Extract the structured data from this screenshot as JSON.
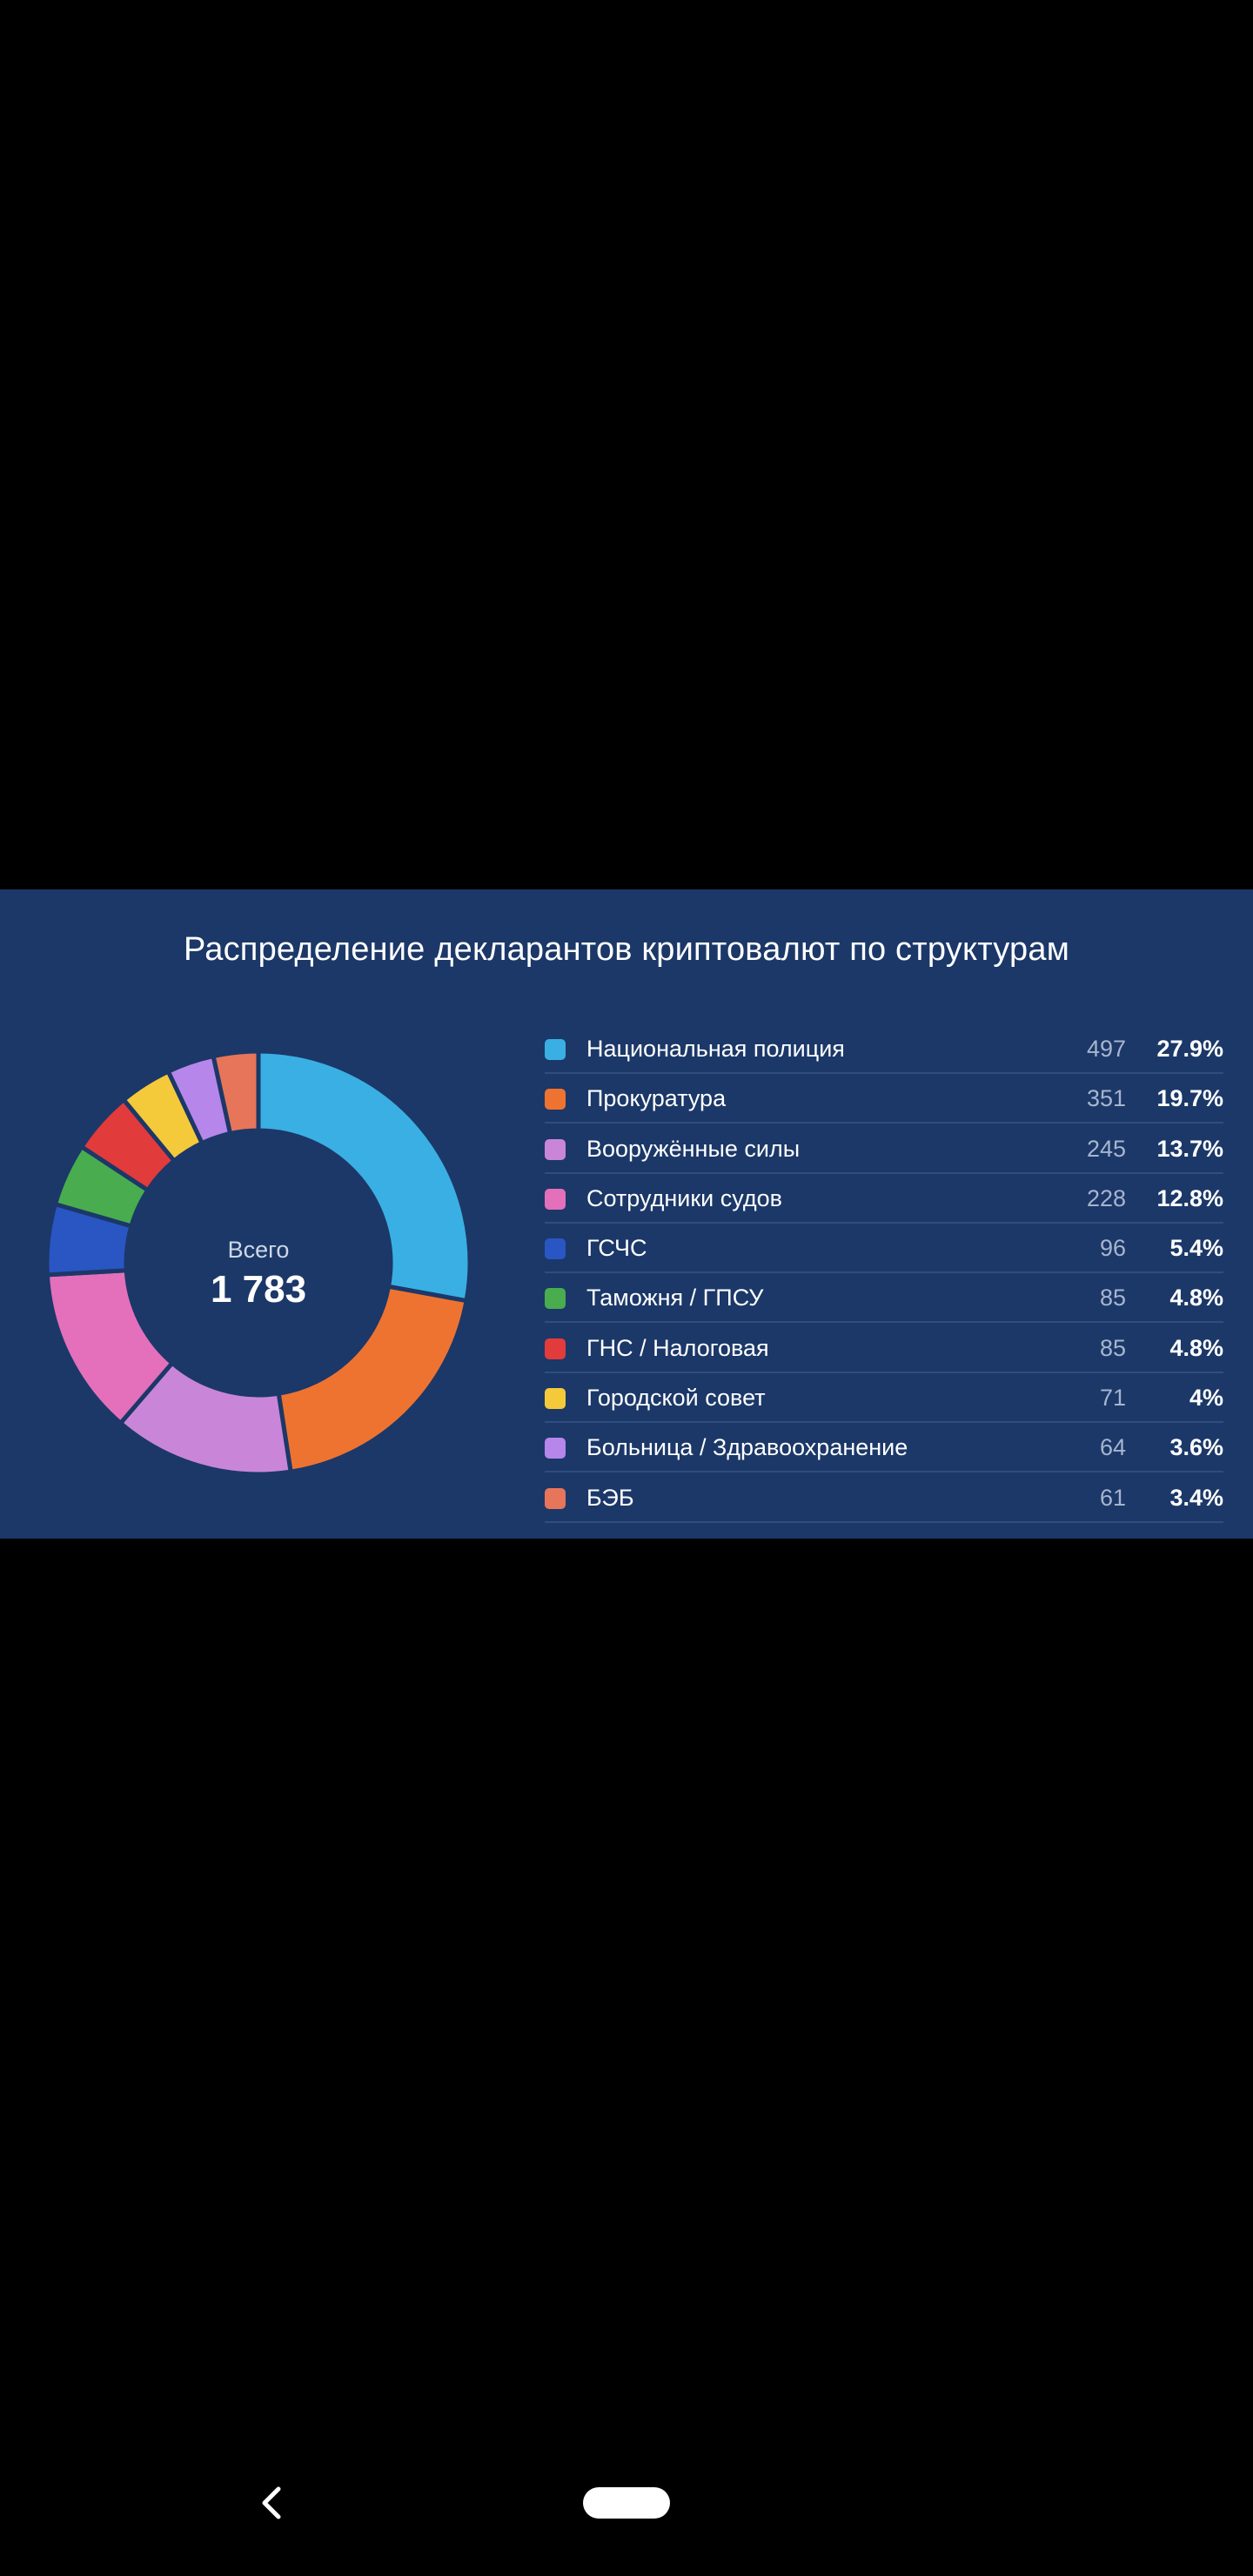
{
  "chart_data": {
    "type": "pie",
    "title": "Распределение декларантов криптовалют по структурам",
    "center_label": "Всего",
    "total": "1 783",
    "slices": [
      {
        "label": "Национальная полиция",
        "value": 497,
        "percent": "27.9%",
        "color": "#3aafe3"
      },
      {
        "label": "Прокуратура",
        "value": 351,
        "percent": "19.7%",
        "color": "#ee7331"
      },
      {
        "label": "Вооружённые силы",
        "value": 245,
        "percent": "13.7%",
        "color": "#c986d8"
      },
      {
        "label": "Сотрудники судов",
        "value": 228,
        "percent": "12.8%",
        "color": "#e46fbb"
      },
      {
        "label": "ГСЧС",
        "value": 96,
        "percent": "5.4%",
        "color": "#2a56c4"
      },
      {
        "label": "Таможня / ГПСУ",
        "value": 85,
        "percent": "4.8%",
        "color": "#49ac4f"
      },
      {
        "label": "ГНС / Налоговая",
        "value": 85,
        "percent": "4.8%",
        "color": "#e23b3b"
      },
      {
        "label": "Городской совет",
        "value": 71,
        "percent": "4%",
        "color": "#f4c93a"
      },
      {
        "label": "Больница / Здравоохранение",
        "value": 64,
        "percent": "3.6%",
        "color": "#b686ea"
      },
      {
        "label": "БЭБ",
        "value": 61,
        "percent": "3.4%",
        "color": "#e7755a"
      }
    ]
  },
  "theme": {
    "card_bg": "#1b3868",
    "divider": "#2f4d80",
    "ring_gap": "#1b3868"
  }
}
